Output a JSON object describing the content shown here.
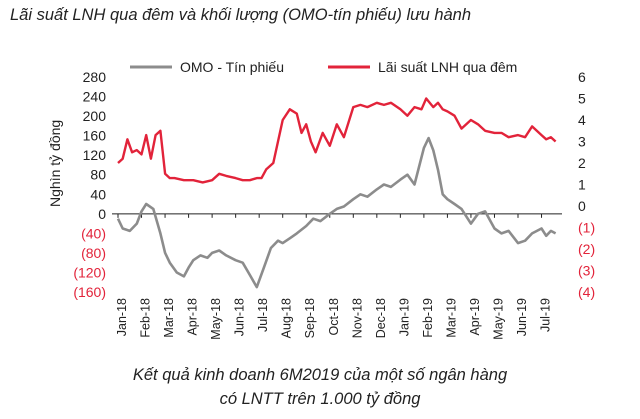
{
  "header": {
    "title": "Lãi suất LNH qua đêm và khối lượng (OMO-tín phiếu) lưu hành"
  },
  "footer": {
    "caption_line1": "Kết quả kinh doanh 6M2019 của một số ngân hàng",
    "caption_line2": "có LNTT trên 1.000 tỷ đồng"
  },
  "colors": {
    "omo": "#8c8c8c",
    "rate": "#e2233a",
    "negative_tick": "#e2233a",
    "text": "#222222"
  },
  "chart_data": {
    "type": "line",
    "title": "Lãi suất LNH qua đêm và khối lượng (OMO-tín phiếu) lưu hành",
    "ylabel": "Nghìn tỷ đồng",
    "ylim": [
      -160,
      280
    ],
    "y2lim": [
      -4,
      6
    ],
    "y_ticks": [
      280,
      240,
      200,
      160,
      120,
      80,
      40,
      0,
      -40,
      -80,
      -120,
      -160
    ],
    "y_tick_labels": [
      "280",
      "240",
      "200",
      "160",
      "120",
      "80",
      "40",
      "0",
      "(40)",
      "(80)",
      "(120)",
      "(160)"
    ],
    "y2_ticks": [
      6,
      5,
      4,
      3,
      2,
      1,
      0,
      -1,
      -2,
      -3,
      -4
    ],
    "y2_tick_labels": [
      "6",
      "5",
      "4",
      "3",
      "2",
      "1",
      "0",
      "(1)",
      "(2)",
      "(3)",
      "(4)"
    ],
    "x_labels": [
      "Jan-18",
      "Feb-18",
      "Mar-18",
      "Apr-18",
      "May-18",
      "Jun-18",
      "Jul-18",
      "Aug-18",
      "Sep-18",
      "Oct-18",
      "Nov-18",
      "Dec-18",
      "Jan-19",
      "Feb-19",
      "Mar-19",
      "Apr-19",
      "May-19",
      "Jun-19",
      "Jul-19"
    ],
    "legend_position": "top",
    "series": [
      {
        "name": "OMO - Tín phiếu",
        "axis": "left",
        "x": [
          0,
          0.2,
          0.5,
          0.8,
          1.0,
          1.2,
          1.5,
          1.8,
          2.0,
          2.2,
          2.5,
          2.8,
          3.0,
          3.2,
          3.5,
          3.8,
          4.0,
          4.3,
          4.6,
          5.0,
          5.3,
          5.6,
          5.9,
          6.2,
          6.5,
          6.8,
          7.0,
          7.3,
          7.6,
          8.0,
          8.3,
          8.6,
          9.0,
          9.3,
          9.6,
          10.0,
          10.3,
          10.6,
          11.0,
          11.3,
          11.6,
          12.0,
          12.3,
          12.6,
          13.0,
          13.2,
          13.4,
          13.6,
          13.8,
          14.0,
          14.3,
          14.6,
          15.0,
          15.3,
          15.6,
          16.0,
          16.3,
          16.6,
          17.0,
          17.3,
          17.6,
          18.0,
          18.2,
          18.4,
          18.6
        ],
        "values": [
          -10,
          -30,
          -35,
          -20,
          5,
          20,
          10,
          -40,
          -80,
          -100,
          -120,
          -128,
          -110,
          -95,
          -85,
          -90,
          -80,
          -75,
          -85,
          -95,
          -100,
          -125,
          -150,
          -110,
          -70,
          -55,
          -60,
          -50,
          -40,
          -25,
          -10,
          -15,
          0,
          10,
          15,
          30,
          40,
          35,
          50,
          60,
          55,
          70,
          80,
          60,
          135,
          155,
          130,
          90,
          40,
          30,
          20,
          10,
          -20,
          0,
          5,
          -30,
          -40,
          -35,
          -60,
          -55,
          -40,
          -30,
          -45,
          -35,
          -40
        ]
      },
      {
        "name": "Lãi suất LNH qua đêm",
        "axis": "right",
        "x": [
          0,
          0.2,
          0.4,
          0.6,
          0.8,
          1.0,
          1.2,
          1.4,
          1.6,
          1.8,
          2.0,
          2.2,
          2.4,
          2.8,
          3.2,
          3.6,
          4.0,
          4.3,
          4.6,
          5.0,
          5.3,
          5.6,
          5.9,
          6.1,
          6.3,
          6.6,
          6.8,
          7.0,
          7.3,
          7.6,
          7.8,
          8.0,
          8.2,
          8.4,
          8.7,
          9.0,
          9.3,
          9.6,
          10.0,
          10.3,
          10.6,
          11.0,
          11.3,
          11.6,
          12.0,
          12.3,
          12.6,
          12.9,
          13.1,
          13.4,
          13.6,
          13.8,
          14.0,
          14.3,
          14.6,
          15.0,
          15.3,
          15.6,
          16.0,
          16.3,
          16.6,
          17.0,
          17.3,
          17.6,
          17.8,
          18.0,
          18.2,
          18.4,
          18.6
        ],
        "values": [
          2.0,
          2.2,
          3.1,
          2.5,
          2.6,
          2.4,
          3.3,
          2.2,
          3.3,
          3.5,
          1.5,
          1.3,
          1.3,
          1.2,
          1.2,
          1.1,
          1.2,
          1.5,
          1.4,
          1.3,
          1.2,
          1.2,
          1.3,
          1.3,
          1.7,
          2.0,
          3.0,
          4.0,
          4.5,
          4.3,
          3.4,
          3.8,
          3.0,
          2.5,
          3.4,
          2.8,
          3.8,
          3.2,
          4.6,
          4.7,
          4.6,
          4.8,
          4.7,
          4.8,
          4.5,
          4.2,
          4.6,
          4.5,
          5.0,
          4.6,
          4.8,
          4.5,
          4.4,
          4.2,
          3.6,
          4.0,
          3.8,
          3.5,
          3.4,
          3.4,
          3.2,
          3.3,
          3.2,
          3.7,
          3.5,
          3.3,
          3.1,
          3.2,
          3.0
        ]
      }
    ]
  }
}
